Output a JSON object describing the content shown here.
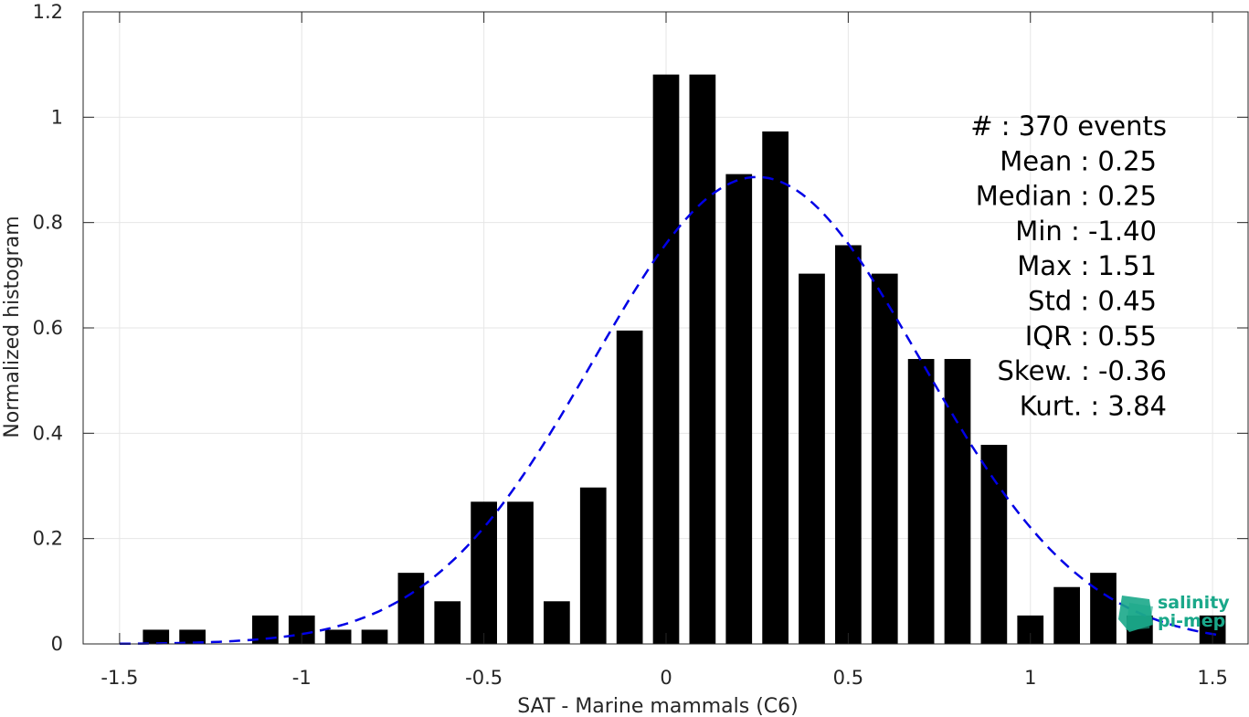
{
  "chart_data": {
    "type": "bar",
    "xlabel": "SAT - Marine mammals (C6)",
    "ylabel": "Normalized histogram",
    "xlim": [
      -1.6,
      1.6
    ],
    "ylim": [
      0,
      1.2
    ],
    "xticks": [
      -1.5,
      -1,
      -0.5,
      0,
      0.5,
      1,
      1.5
    ],
    "xtick_labels": [
      "-1.5",
      "-1",
      "-0.5",
      "0",
      "0.5",
      "1",
      "1.5"
    ],
    "yticks": [
      0,
      0.2,
      0.4,
      0.6,
      0.8,
      1,
      1.2
    ],
    "ytick_labels": [
      "0",
      "0.2",
      "0.4",
      "0.6",
      "0.8",
      "1",
      "1.2"
    ],
    "grid": true,
    "bar_color": "#000000",
    "bin_width": 0.1,
    "x": [
      -1.4,
      -1.3,
      -1.1,
      -1.0,
      -0.9,
      -0.8,
      -0.7,
      -0.6,
      -0.5,
      -0.4,
      -0.3,
      -0.2,
      -0.1,
      0.0,
      0.1,
      0.2,
      0.3,
      0.4,
      0.5,
      0.6,
      0.7,
      0.8,
      0.9,
      1.0,
      1.1,
      1.2,
      1.3,
      1.5
    ],
    "values": [
      0.027,
      0.027,
      0.054,
      0.054,
      0.027,
      0.027,
      0.135,
      0.081,
      0.27,
      0.27,
      0.081,
      0.297,
      0.595,
      1.081,
      1.081,
      0.892,
      0.973,
      0.703,
      0.757,
      0.703,
      0.541,
      0.541,
      0.378,
      0.054,
      0.108,
      0.135,
      0.054,
      0.054
    ],
    "fit_curve": {
      "type": "normal",
      "style": "dashed",
      "color": "#0000e6",
      "mean": 0.25,
      "std": 0.45,
      "x_range": [
        -1.5,
        1.52
      ]
    },
    "stats": [
      "#  : 370 events",
      "Mean : 0.25",
      "Median : 0.25",
      "Min : -1.40",
      "Max : 1.51",
      "Std : 0.45",
      "IQR : 0.55",
      "Skew. : -0.36",
      "Kurt. : 3.84"
    ]
  },
  "logo": {
    "line1": "salinity",
    "line2": "pi-mep",
    "color": "#1aa88a"
  }
}
